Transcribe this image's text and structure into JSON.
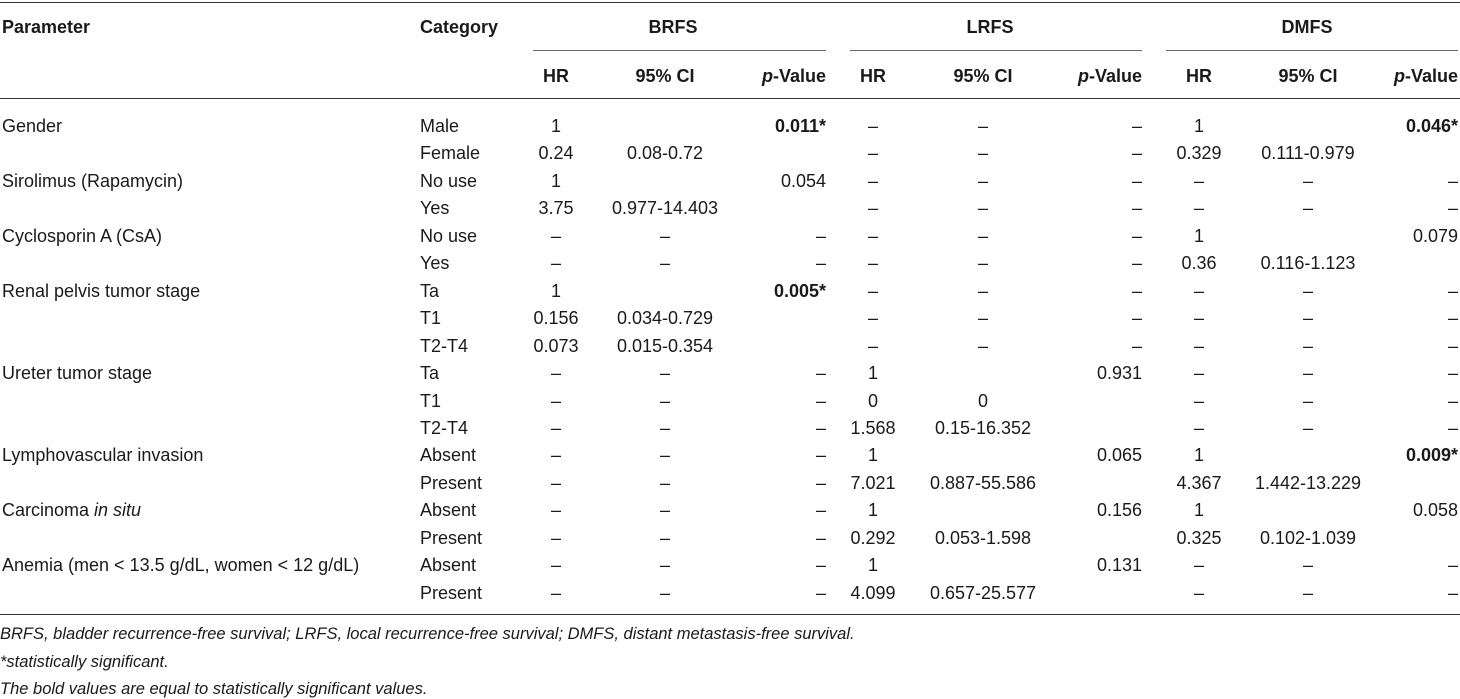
{
  "header": {
    "parameter": "Parameter",
    "category": "Category",
    "groups": [
      "BRFS",
      "LRFS",
      "DMFS"
    ],
    "hr": "HR",
    "ci": "95% CI",
    "p_italic": "p",
    "p_rest": "-Value"
  },
  "rows": [
    {
      "param": "Gender",
      "param_pre": "",
      "param_it": "",
      "cat": "Male",
      "cells": [
        "1",
        "",
        "0.011*",
        "–",
        "–",
        "–",
        "1",
        "",
        "0.046*"
      ],
      "bold": [
        2,
        8
      ]
    },
    {
      "param": "",
      "cat": "Female",
      "cells": [
        "0.24",
        "0.08-0.72",
        "",
        "–",
        "–",
        "–",
        "0.329",
        "0.111-0.979",
        ""
      ],
      "bold": []
    },
    {
      "param": "Sirolimus (Rapamycin)",
      "cat": "No use",
      "cells": [
        "1",
        "",
        "0.054",
        "–",
        "–",
        "–",
        "–",
        "–",
        "–"
      ],
      "bold": []
    },
    {
      "param": "",
      "cat": "Yes",
      "cells": [
        "3.75",
        "0.977-14.403",
        "",
        "–",
        "–",
        "–",
        "–",
        "–",
        "–"
      ],
      "bold": []
    },
    {
      "param": "Cyclosporin A (CsA)",
      "cat": "No use",
      "cells": [
        "–",
        "–",
        "–",
        "–",
        "–",
        "–",
        "1",
        "",
        "0.079"
      ],
      "bold": []
    },
    {
      "param": "",
      "cat": "Yes",
      "cells": [
        "–",
        "–",
        "–",
        "–",
        "–",
        "–",
        "0.36",
        "0.116-1.123",
        ""
      ],
      "bold": []
    },
    {
      "param": "Renal pelvis tumor stage",
      "cat": "Ta",
      "cells": [
        "1",
        "",
        "0.005*",
        "–",
        "–",
        "–",
        "–",
        "–",
        "–"
      ],
      "bold": [
        2
      ]
    },
    {
      "param": "",
      "cat": "T1",
      "cells": [
        "0.156",
        "0.034-0.729",
        "",
        "–",
        "–",
        "–",
        "–",
        "–",
        "–"
      ],
      "bold": []
    },
    {
      "param": "",
      "cat": "T2-T4",
      "cells": [
        "0.073",
        "0.015-0.354",
        "",
        "–",
        "–",
        "–",
        "–",
        "–",
        "–"
      ],
      "bold": []
    },
    {
      "param": "Ureter tumor stage",
      "cat": "Ta",
      "cells": [
        "–",
        "–",
        "–",
        "1",
        "",
        "0.931",
        "–",
        "–",
        "–"
      ],
      "bold": []
    },
    {
      "param": "",
      "cat": "T1",
      "cells": [
        "–",
        "–",
        "–",
        "0",
        "0",
        "",
        "–",
        "–",
        "–"
      ],
      "bold": []
    },
    {
      "param": "",
      "cat": "T2-T4",
      "cells": [
        "–",
        "–",
        "–",
        "1.568",
        "0.15-16.352",
        "",
        "–",
        "–",
        "–"
      ],
      "bold": []
    },
    {
      "param": "Lymphovascular invasion",
      "cat": "Absent",
      "cells": [
        "–",
        "–",
        "–",
        "1",
        "",
        "0.065",
        "1",
        "",
        "0.009*"
      ],
      "bold": [
        8
      ]
    },
    {
      "param": "",
      "cat": "Present",
      "cells": [
        "–",
        "–",
        "–",
        "7.021",
        "0.887-55.586",
        "",
        "4.367",
        "1.442-13.229",
        ""
      ],
      "bold": []
    },
    {
      "param": "",
      "param_pre": "Carcinoma ",
      "param_it": "in situ",
      "cat": "Absent",
      "cells": [
        "–",
        "–",
        "–",
        "1",
        "",
        "0.156",
        "1",
        "",
        "0.058"
      ],
      "bold": []
    },
    {
      "param": "",
      "cat": "Present",
      "cells": [
        "–",
        "–",
        "–",
        "0.292",
        "0.053-1.598",
        "",
        "0.325",
        "0.102-1.039",
        ""
      ],
      "bold": []
    },
    {
      "param": "Anemia (men < 13.5 g/dL, women < 12 g/dL)",
      "cat": "Absent",
      "cells": [
        "–",
        "–",
        "–",
        "1",
        "",
        "0.131",
        "–",
        "–",
        "–"
      ],
      "bold": []
    },
    {
      "param": "",
      "cat": "Present",
      "cells": [
        "–",
        "–",
        "–",
        "4.099",
        "0.657-25.577",
        "",
        "–",
        "–",
        "–"
      ],
      "bold": []
    }
  ],
  "footnotes": {
    "abbrev": "BRFS, bladder recurrence-free survival; LRFS, local recurrence-free survival; DMFS, distant metastasis-free survival.",
    "star": "*statistically significant.",
    "bold": "The bold values are equal to statistically significant values."
  }
}
